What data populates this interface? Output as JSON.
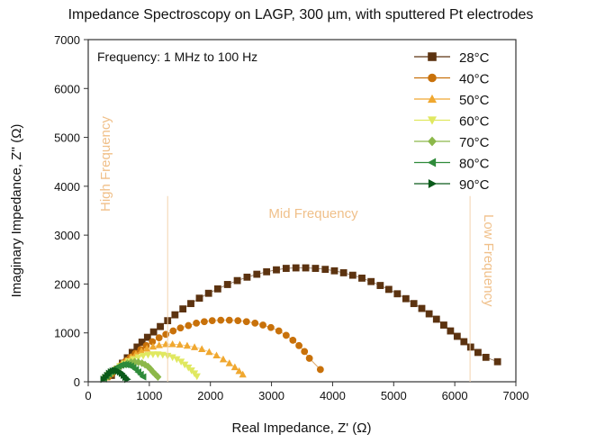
{
  "chart_data": {
    "type": "scatter",
    "title": "Impedance Spectroscopy on LAGP, 300 µm, with sputtered Pt electrodes",
    "xlabel": "Real Impedance, Z' (Ω)",
    "ylabel": "Imaginary Impedance, Z'' (Ω)",
    "xlim": [
      0,
      7000
    ],
    "ylim": [
      0,
      7000
    ],
    "xticks": [
      0,
      1000,
      2000,
      3000,
      4000,
      5000,
      6000,
      7000
    ],
    "yticks": [
      0,
      1000,
      2000,
      3000,
      4000,
      5000,
      6000,
      7000
    ],
    "grid": false,
    "legend_position": "top-right",
    "annotations": {
      "frequency_note": "Frequency: 1 MHz to 100 Hz",
      "high": "High Frequency",
      "mid": "Mid Frequency",
      "low": "Low Frequency",
      "divider_x": [
        1300,
        6250
      ]
    },
    "series": [
      {
        "name": "28°C",
        "color": "#5c3310",
        "marker": "square",
        "x": [
          380,
          480,
          560,
          640,
          720,
          800,
          880,
          970,
          1070,
          1180,
          1300,
          1420,
          1550,
          1680,
          1820,
          1970,
          2120,
          2280,
          2440,
          2600,
          2760,
          2920,
          3080,
          3240,
          3400,
          3560,
          3720,
          3880,
          4030,
          4180,
          4330,
          4480,
          4630,
          4780,
          4920,
          5060,
          5200,
          5330,
          5460,
          5580,
          5700,
          5820,
          5930,
          6040,
          6150,
          6260,
          6380,
          6510,
          6700
        ],
        "y": [
          130,
          260,
          380,
          490,
          600,
          710,
          810,
          910,
          1020,
          1130,
          1250,
          1370,
          1490,
          1600,
          1710,
          1810,
          1900,
          1990,
          2070,
          2140,
          2200,
          2250,
          2290,
          2320,
          2330,
          2330,
          2320,
          2300,
          2270,
          2230,
          2180,
          2120,
          2050,
          1970,
          1890,
          1800,
          1700,
          1600,
          1500,
          1390,
          1280,
          1160,
          1040,
          930,
          820,
          710,
          600,
          500,
          410
        ]
      },
      {
        "name": "40°C",
        "color": "#c8710a",
        "marker": "circle",
        "x": [
          330,
          400,
          470,
          540,
          610,
          690,
          770,
          860,
          950,
          1050,
          1160,
          1270,
          1390,
          1510,
          1640,
          1770,
          1900,
          2030,
          2170,
          2310,
          2450,
          2590,
          2730,
          2860,
          2990,
          3120,
          3240,
          3350,
          3450,
          3540,
          3620,
          3800
        ],
        "y": [
          100,
          180,
          260,
          340,
          420,
          500,
          580,
          660,
          740,
          820,
          900,
          970,
          1040,
          1100,
          1150,
          1200,
          1230,
          1250,
          1260,
          1260,
          1250,
          1230,
          1200,
          1160,
          1110,
          1040,
          950,
          850,
          740,
          620,
          480,
          250
        ]
      },
      {
        "name": "50°C",
        "color": "#f0a830",
        "marker": "triangle-up",
        "x": [
          300,
          360,
          420,
          480,
          550,
          620,
          700,
          780,
          870,
          960,
          1060,
          1160,
          1270,
          1380,
          1500,
          1620,
          1740,
          1860,
          1980,
          2100,
          2210,
          2310,
          2400,
          2470,
          2530
        ],
        "y": [
          90,
          160,
          230,
          300,
          370,
          440,
          510,
          570,
          630,
          680,
          720,
          750,
          770,
          770,
          760,
          740,
          710,
          670,
          610,
          540,
          460,
          380,
          300,
          220,
          150
        ]
      },
      {
        "name": "60°C",
        "color": "#e0e860",
        "marker": "triangle-down",
        "x": [
          280,
          340,
          400,
          460,
          520,
          590,
          660,
          740,
          820,
          900,
          980,
          1060,
          1140,
          1220,
          1300,
          1380,
          1450,
          1520,
          1580,
          1640,
          1690,
          1740,
          1780
        ],
        "y": [
          80,
          140,
          200,
          260,
          320,
          370,
          420,
          460,
          500,
          530,
          550,
          560,
          560,
          550,
          530,
          500,
          460,
          410,
          350,
          290,
          230,
          170,
          110
        ]
      },
      {
        "name": "70°C",
        "color": "#8cb84a",
        "marker": "diamond",
        "x": [
          270,
          320,
          370,
          420,
          470,
          520,
          580,
          640,
          700,
          760,
          820,
          880,
          930,
          980,
          1020,
          1060,
          1100,
          1140
        ],
        "y": [
          70,
          120,
          170,
          220,
          270,
          310,
          350,
          380,
          400,
          410,
          400,
          380,
          350,
          310,
          260,
          200,
          150,
          100
        ]
      },
      {
        "name": "80°C",
        "color": "#2e8b3a",
        "marker": "triangle-left",
        "x": [
          260,
          300,
          340,
          380,
          420,
          460,
          500,
          540,
          580,
          620,
          660,
          700,
          740,
          780,
          820,
          860,
          900
        ],
        "y": [
          60,
          110,
          160,
          210,
          250,
          290,
          320,
          340,
          350,
          350,
          340,
          320,
          290,
          250,
          200,
          150,
          100
        ]
      },
      {
        "name": "90°C",
        "color": "#0a5a1a",
        "marker": "triangle-right",
        "x": [
          250,
          280,
          310,
          340,
          370,
          400,
          430,
          460,
          490,
          520,
          550,
          580,
          610,
          640
        ],
        "y": [
          50,
          90,
          130,
          170,
          200,
          220,
          230,
          230,
          220,
          200,
          170,
          130,
          90,
          50
        ]
      }
    ]
  }
}
